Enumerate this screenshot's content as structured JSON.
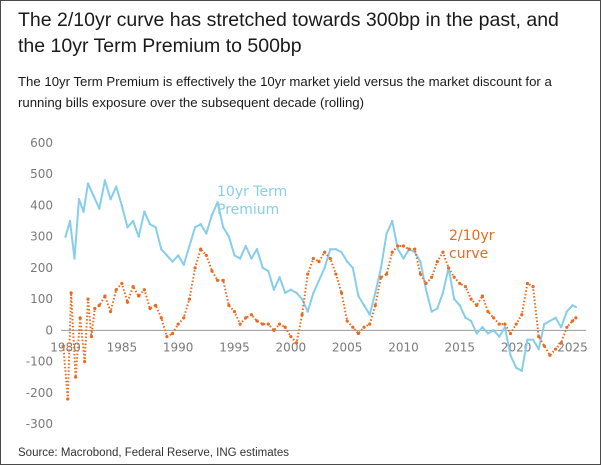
{
  "title": "The 2/10yr curve has stretched towards 300bp in the past, and the 10yr Term Premium to 500bp",
  "subtitle": "The 10yr Term Premium is effectively the 10yr market yield versus the market discount for a running bills exposure over the subsequent decade (rolling)",
  "source": "Source: Macrobond, Federal Reserve, ING estimates",
  "colors": {
    "term_premium": "#87CEEB",
    "curve_2_10": "#E86B1F",
    "axis_text": "#7a7a7a"
  },
  "chart_data": {
    "type": "line",
    "xlim": [
      1979.6,
      2026.2
    ],
    "ylim": [
      -300,
      600
    ],
    "y_ticks": [
      600,
      500,
      400,
      300,
      200,
      100,
      0,
      -100,
      -200,
      -300
    ],
    "x_ticks": [
      1980,
      1985,
      1990,
      1995,
      2000,
      2005,
      2010,
      2015,
      2020,
      2025
    ],
    "x_tick_labels": [
      "1980",
      "1985",
      "1990",
      "1995",
      "2000",
      "2005",
      "2010",
      "2015",
      "2020",
      "2025"
    ],
    "series": [
      {
        "name": "10yr Term Premium",
        "label_lines": [
          "10yr Term",
          "Premium"
        ],
        "style": "line",
        "x": [
          1980.0,
          1980.4,
          1980.8,
          1981.2,
          1981.6,
          1982.0,
          1982.5,
          1983.0,
          1983.5,
          1984.0,
          1984.5,
          1985.0,
          1985.5,
          1986.0,
          1986.5,
          1987.0,
          1987.5,
          1988.0,
          1988.5,
          1989.0,
          1989.5,
          1990.0,
          1990.5,
          1991.0,
          1991.5,
          1992.0,
          1992.5,
          1993.0,
          1993.5,
          1994.0,
          1994.5,
          1995.0,
          1995.5,
          1996.0,
          1996.5,
          1997.0,
          1997.5,
          1998.0,
          1998.5,
          1999.0,
          1999.5,
          2000.0,
          2000.5,
          2001.0,
          2001.5,
          2002.0,
          2002.5,
          2003.0,
          2003.5,
          2004.0,
          2004.5,
          2005.0,
          2005.5,
          2006.0,
          2006.5,
          2007.0,
          2007.5,
          2008.0,
          2008.5,
          2009.0,
          2009.5,
          2010.0,
          2010.5,
          2011.0,
          2011.5,
          2012.0,
          2012.5,
          2013.0,
          2013.5,
          2014.0,
          2014.5,
          2015.0,
          2015.5,
          2016.0,
          2016.5,
          2017.0,
          2017.5,
          2018.0,
          2018.5,
          2019.0,
          2019.5,
          2020.0,
          2020.5,
          2021.0,
          2021.5,
          2022.0,
          2022.5,
          2023.0,
          2023.5,
          2024.0,
          2024.5,
          2025.0,
          2025.3
        ],
        "y": [
          300,
          350,
          230,
          420,
          380,
          470,
          430,
          390,
          480,
          420,
          460,
          400,
          330,
          350,
          300,
          380,
          340,
          330,
          260,
          240,
          220,
          240,
          210,
          270,
          330,
          340,
          310,
          370,
          410,
          330,
          300,
          240,
          230,
          270,
          230,
          260,
          200,
          190,
          130,
          170,
          120,
          130,
          120,
          100,
          60,
          120,
          160,
          200,
          260,
          260,
          250,
          220,
          200,
          110,
          80,
          50,
          120,
          200,
          310,
          350,
          260,
          230,
          260,
          250,
          220,
          130,
          60,
          70,
          120,
          200,
          100,
          80,
          40,
          30,
          -10,
          10,
          -10,
          0,
          -20,
          10,
          -80,
          -120,
          -130,
          -30,
          -30,
          -60,
          20,
          30,
          40,
          10,
          60,
          80,
          75
        ]
      },
      {
        "name": "2/10yr curve",
        "label_lines": [
          "2/10yr",
          "curve"
        ],
        "style": "dotted",
        "x": [
          1979.8,
          1980.2,
          1980.5,
          1980.9,
          1981.3,
          1981.7,
          1982.0,
          1982.3,
          1982.6,
          1983.0,
          1983.5,
          1984.0,
          1984.5,
          1985.0,
          1985.5,
          1986.0,
          1986.5,
          1987.0,
          1987.5,
          1988.0,
          1988.5,
          1989.0,
          1989.5,
          1990.0,
          1990.5,
          1991.0,
          1991.5,
          1992.0,
          1992.5,
          1993.0,
          1993.5,
          1994.0,
          1994.5,
          1995.0,
          1995.5,
          1996.0,
          1996.5,
          1997.0,
          1997.5,
          1998.0,
          1998.5,
          1999.0,
          1999.5,
          2000.0,
          2000.5,
          2001.0,
          2001.5,
          2002.0,
          2002.5,
          2003.0,
          2003.5,
          2004.0,
          2004.5,
          2005.0,
          2005.5,
          2006.0,
          2006.5,
          2007.0,
          2007.5,
          2008.0,
          2008.5,
          2009.0,
          2009.5,
          2010.0,
          2010.5,
          2011.0,
          2011.5,
          2012.0,
          2012.5,
          2013.0,
          2013.5,
          2014.0,
          2014.5,
          2015.0,
          2015.5,
          2016.0,
          2016.5,
          2017.0,
          2017.5,
          2018.0,
          2018.5,
          2019.0,
          2019.5,
          2020.0,
          2020.5,
          2021.0,
          2021.5,
          2022.0,
          2022.5,
          2023.0,
          2023.5,
          2024.0,
          2024.5,
          2025.0,
          2025.3
        ],
        "y": [
          -50,
          -220,
          120,
          -150,
          40,
          -100,
          100,
          -20,
          70,
          80,
          110,
          60,
          130,
          150,
          90,
          140,
          110,
          130,
          70,
          80,
          40,
          -20,
          -10,
          20,
          40,
          100,
          200,
          260,
          240,
          190,
          160,
          160,
          80,
          60,
          20,
          40,
          50,
          30,
          20,
          20,
          0,
          20,
          10,
          -20,
          -40,
          50,
          180,
          230,
          220,
          250,
          230,
          180,
          120,
          30,
          10,
          -10,
          10,
          20,
          80,
          170,
          180,
          250,
          270,
          270,
          260,
          260,
          180,
          150,
          170,
          220,
          250,
          200,
          170,
          150,
          140,
          100,
          80,
          110,
          60,
          40,
          20,
          20,
          -10,
          20,
          50,
          150,
          140,
          -20,
          -50,
          -80,
          -60,
          -40,
          10,
          30,
          40
        ]
      }
    ]
  }
}
